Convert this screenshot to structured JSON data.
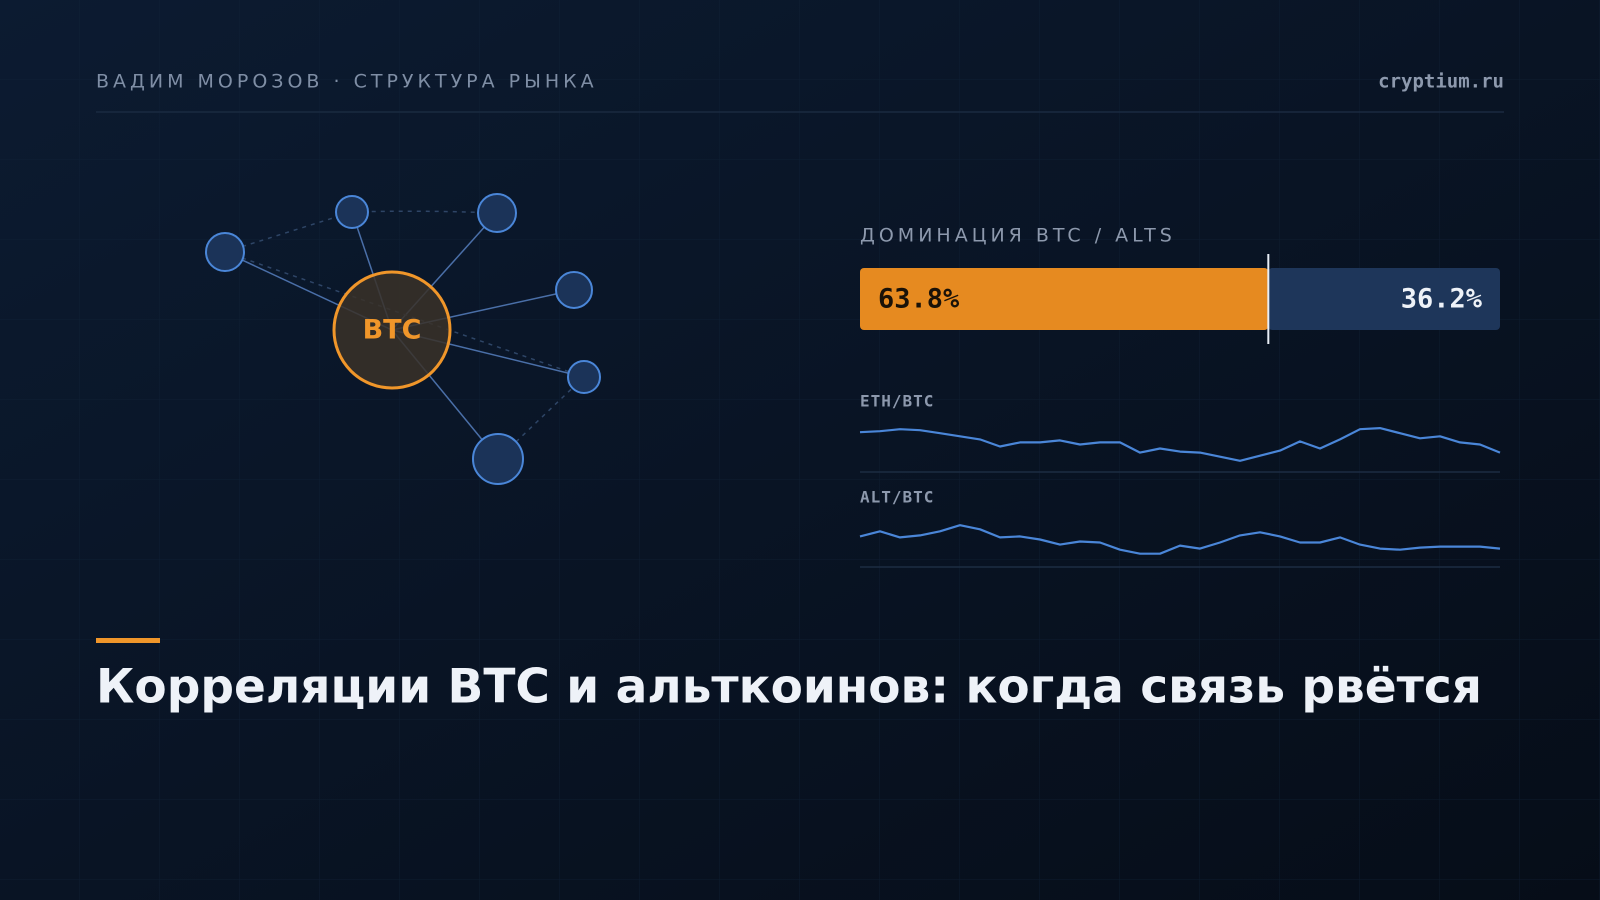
{
  "header": {
    "author": "ВАДИМ МОРОЗОВ · СТРУКТУРА РЫНКА",
    "site": "cryptium.ru"
  },
  "network": {
    "center_label": "BTC"
  },
  "dominance": {
    "label": "ДОМИНАЦИЯ BTC / ALTS",
    "values": [
      63.8,
      36.2
    ],
    "value_labels": [
      "63.8%",
      "36.2%"
    ],
    "colors": [
      "#e68a20",
      "#1e365a"
    ]
  },
  "sparklines": [
    {
      "name": "ETH/BTC",
      "color": "#4a86d8",
      "values": [
        39,
        40,
        42,
        41,
        38,
        35,
        32,
        25,
        29,
        29,
        31,
        27,
        29,
        29,
        19,
        23,
        20,
        19,
        15,
        11,
        16,
        21,
        30,
        23,
        32,
        42,
        43,
        38,
        33,
        35,
        29,
        27,
        19
      ]
    },
    {
      "name": "ALT/BTC",
      "color": "#4a86d8",
      "values": [
        30,
        35,
        29,
        31,
        35,
        41,
        37,
        29,
        30,
        27,
        22,
        25,
        24,
        17,
        13,
        13,
        21,
        18,
        24,
        31,
        34,
        30,
        24,
        24,
        29,
        22,
        18,
        17,
        19,
        20,
        20,
        20,
        18
      ]
    }
  ],
  "title": "Корреляции BTC и альткоинов: когда связь рвётся"
}
